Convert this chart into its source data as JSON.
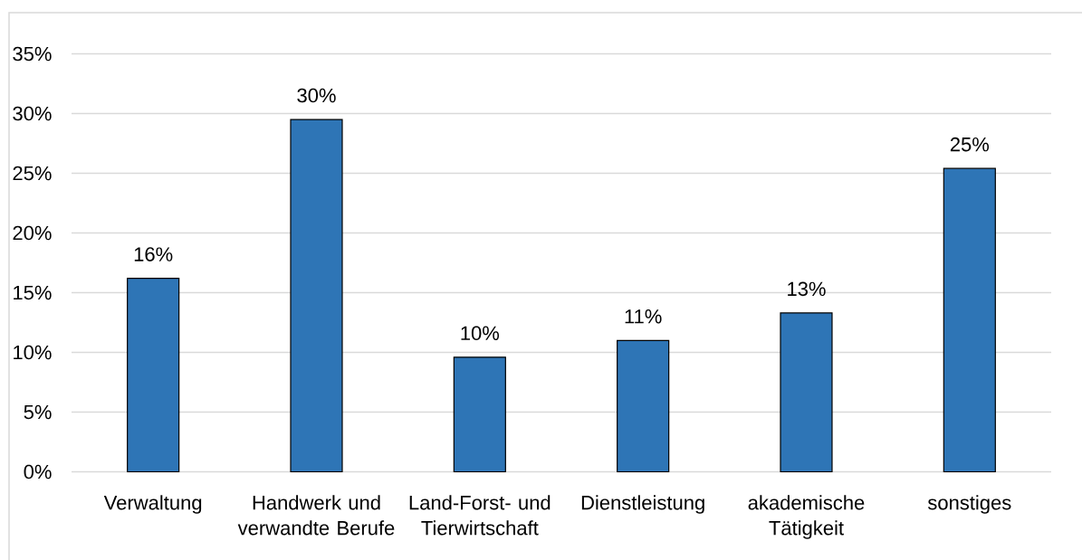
{
  "chart_data": {
    "type": "bar",
    "categories": [
      "Verwaltung",
      "Handwerk und verwandte Berufe",
      "Land-Forst- und Tierwirtschaft",
      "Dienstleistung",
      "akademische Tätigkeit",
      "sonstiges"
    ],
    "values": [
      16.2,
      29.5,
      9.6,
      11.0,
      13.3,
      25.4
    ],
    "value_labels": [
      "16%",
      "30%",
      "10%",
      "11%",
      "13%",
      "25%"
    ],
    "color": "#2e75b6",
    "ylim": [
      0,
      35
    ],
    "yticks": [
      {
        "value": 0,
        "label": "0%"
      },
      {
        "value": 5,
        "label": "5%"
      },
      {
        "value": 10,
        "label": "10%"
      },
      {
        "value": 15,
        "label": "15%"
      },
      {
        "value": 20,
        "label": "20%"
      },
      {
        "value": 25,
        "label": "25%"
      },
      {
        "value": 30,
        "label": "30%"
      },
      {
        "value": 35,
        "label": "35%"
      }
    ],
    "grid": "y"
  }
}
